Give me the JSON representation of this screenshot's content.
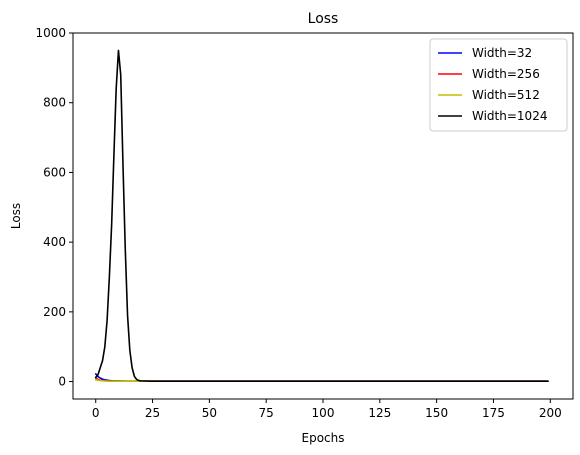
{
  "chart_data": {
    "type": "line",
    "title": "Loss",
    "xlabel": "Epochs",
    "ylabel": "Loss",
    "xlim": [
      -10,
      210
    ],
    "ylim": [
      -50,
      1000
    ],
    "xticks": [
      0,
      25,
      50,
      75,
      100,
      125,
      150,
      175,
      200
    ],
    "yticks": [
      0,
      200,
      400,
      600,
      800,
      1000
    ],
    "grid": false,
    "legend_position": "top-right",
    "series": [
      {
        "name": "Width=32",
        "color": "#0000ff",
        "x": [
          0,
          1,
          2,
          3,
          4,
          5,
          6,
          8,
          10,
          15,
          20,
          30,
          50,
          100,
          150,
          199
        ],
        "y": [
          22,
          14,
          10,
          7,
          5,
          4,
          3,
          2,
          2,
          1,
          1,
          1,
          1,
          1,
          1,
          1
        ]
      },
      {
        "name": "Width=256",
        "color": "#ff0000",
        "x": [
          0,
          1,
          2,
          3,
          4,
          5,
          6,
          8,
          10,
          15,
          20,
          30,
          50,
          100,
          150,
          199
        ],
        "y": [
          10,
          6,
          4,
          3,
          2,
          2,
          1,
          1,
          1,
          1,
          1,
          1,
          1,
          1,
          1,
          1
        ]
      },
      {
        "name": "Width=512",
        "color": "#bfbf00",
        "x": [
          0,
          1,
          2,
          3,
          4,
          5,
          6,
          8,
          10,
          15,
          20,
          30,
          50,
          100,
          150,
          199
        ],
        "y": [
          5,
          4,
          3,
          2,
          2,
          1,
          1,
          1,
          1,
          1,
          1,
          1,
          1,
          1,
          1,
          1
        ]
      },
      {
        "name": "Width=1024",
        "color": "#000000",
        "x": [
          0,
          1,
          2,
          3,
          4,
          5,
          6,
          7,
          8,
          9,
          10,
          11,
          12,
          13,
          14,
          15,
          16,
          17,
          18,
          19,
          20,
          25,
          50,
          100,
          150,
          199
        ],
        "y": [
          12,
          20,
          40,
          60,
          100,
          175,
          300,
          450,
          650,
          840,
          950,
          880,
          620,
          380,
          190,
          90,
          40,
          15,
          6,
          3,
          2,
          1,
          1,
          1,
          1,
          1
        ]
      }
    ]
  }
}
